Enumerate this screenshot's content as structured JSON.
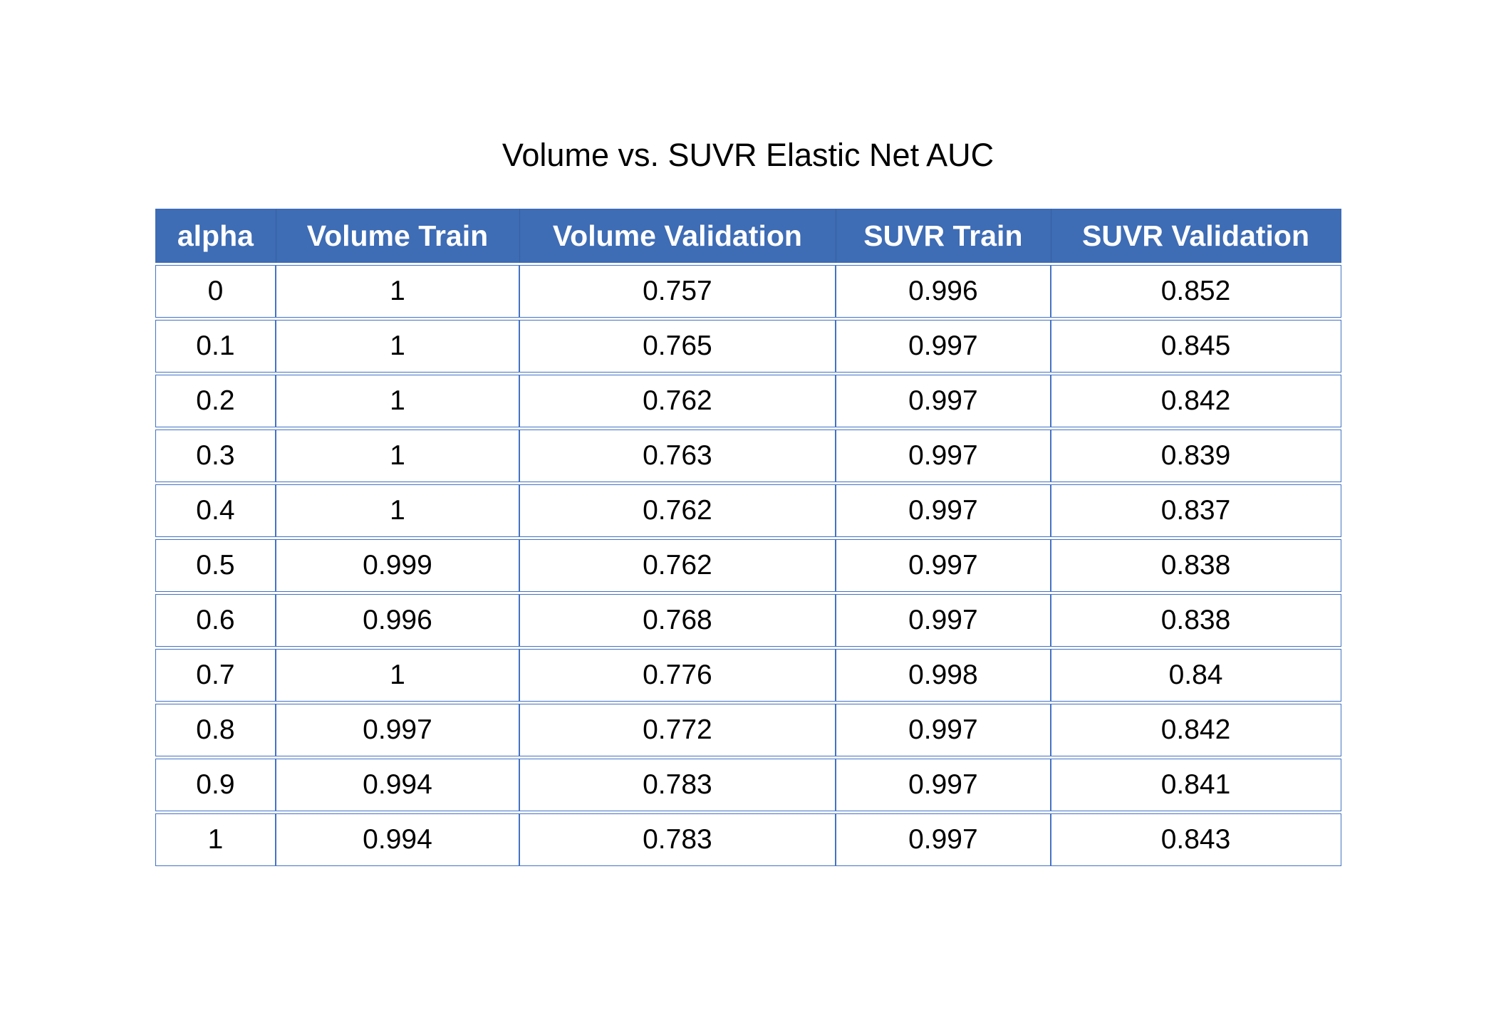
{
  "title": "Volume vs. SUVR Elastic Net AUC",
  "colors": {
    "header_bg": "#3E6CB5",
    "header_divider": "#35619E",
    "border": "#4472C4",
    "header_text": "#FFFFFF",
    "cell_text": "#000000",
    "page_bg": "#FFFFFF"
  },
  "chart_data": {
    "type": "table",
    "title": "Volume vs. SUVR Elastic Net AUC",
    "columns": [
      "alpha",
      "Volume Train",
      "Volume Validation",
      "SUVR Train",
      "SUVR Validation"
    ],
    "rows": [
      [
        "0",
        "1",
        "0.757",
        "0.996",
        "0.852"
      ],
      [
        "0.1",
        "1",
        "0.765",
        "0.997",
        "0.845"
      ],
      [
        "0.2",
        "1",
        "0.762",
        "0.997",
        "0.842"
      ],
      [
        "0.3",
        "1",
        "0.763",
        "0.997",
        "0.839"
      ],
      [
        "0.4",
        "1",
        "0.762",
        "0.997",
        "0.837"
      ],
      [
        "0.5",
        "0.999",
        "0.762",
        "0.997",
        "0.838"
      ],
      [
        "0.6",
        "0.996",
        "0.768",
        "0.997",
        "0.838"
      ],
      [
        "0.7",
        "1",
        "0.776",
        "0.998",
        "0.84"
      ],
      [
        "0.8",
        "0.997",
        "0.772",
        "0.997",
        "0.842"
      ],
      [
        "0.9",
        "0.994",
        "0.783",
        "0.997",
        "0.841"
      ],
      [
        "1",
        "0.994",
        "0.783",
        "0.997",
        "0.843"
      ]
    ],
    "layout": {
      "legend": "none",
      "grid": "full-borders",
      "header_style": "solid-blue-band"
    }
  }
}
